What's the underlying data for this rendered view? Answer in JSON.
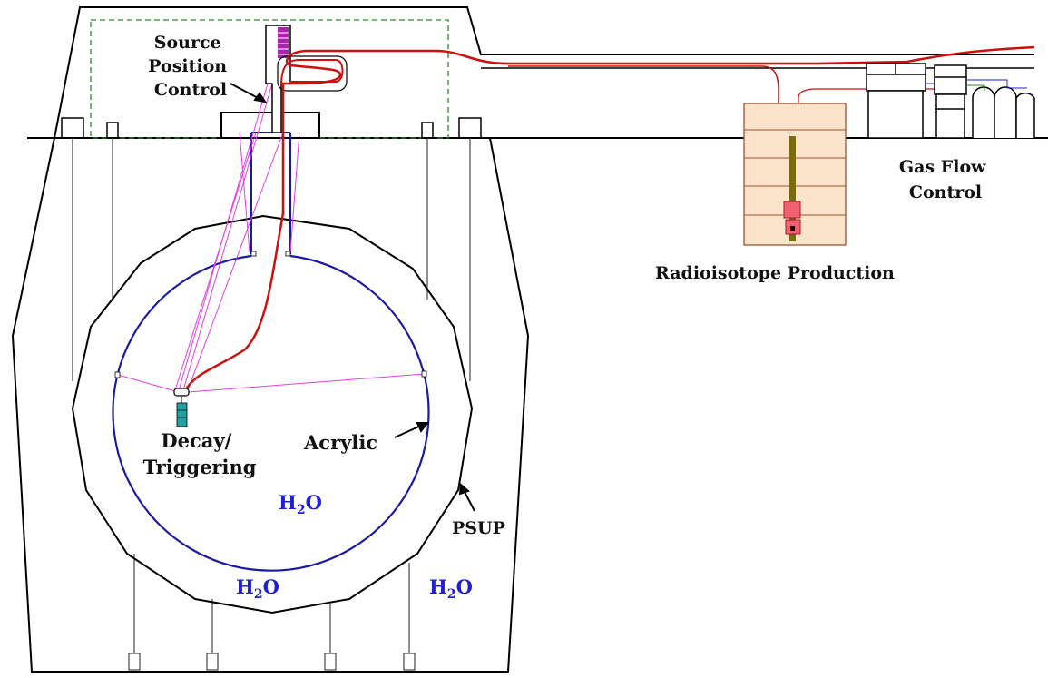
{
  "labels": {
    "source_position_control": [
      "Source",
      "Position",
      "Control"
    ],
    "gas_flow_control": [
      "Gas Flow",
      "Control"
    ],
    "radioisotope_production": "Radioisotope Production",
    "decay_triggering": [
      "Decay/",
      "Triggering"
    ],
    "acrylic": "Acrylic",
    "psup": "PSUP",
    "water": {
      "main": "H",
      "sub": "2",
      "tail": "O"
    }
  },
  "colors": {
    "outline": "#000000",
    "vessel": "#1a1aa0",
    "gas_line": "#cc1010",
    "rope": "#e040e0",
    "fence": "#2a8a2a",
    "water_text": "#1f1fd6",
    "chamber_fill": "#fbe3cc",
    "chamber_edge": "#a0522d",
    "rod": "#7a6a10",
    "block": "#f06070",
    "source_block": "#b020b0",
    "trigger": "#20a0a0"
  }
}
